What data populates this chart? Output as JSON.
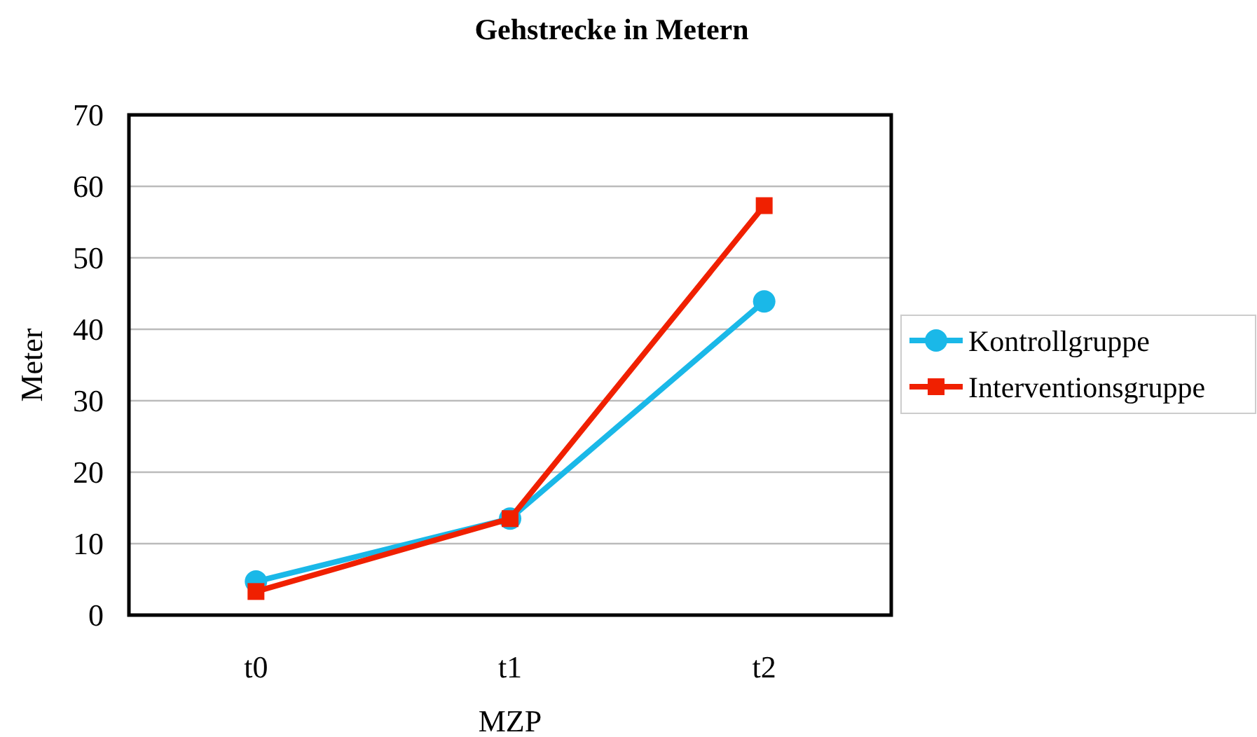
{
  "chart_data": {
    "type": "line",
    "title": "Gehstrecke in Metern",
    "xlabel": "MZP",
    "ylabel": "Meter",
    "categories": [
      "t0",
      "t1",
      "t2"
    ],
    "series": [
      {
        "name": "Kontrollgruppe",
        "color": "#1ab8e8",
        "marker": "circle",
        "values": [
          4.7,
          13.5,
          43.9
        ]
      },
      {
        "name": "Interventionsgruppe",
        "color": "#f02000",
        "marker": "square",
        "values": [
          3.3,
          13.5,
          57.3
        ]
      }
    ],
    "ylim": [
      0,
      70
    ],
    "yticks": [
      0,
      10,
      20,
      30,
      40,
      50,
      60,
      70
    ],
    "grid": "y",
    "legend": "right",
    "line_style": "solid"
  }
}
